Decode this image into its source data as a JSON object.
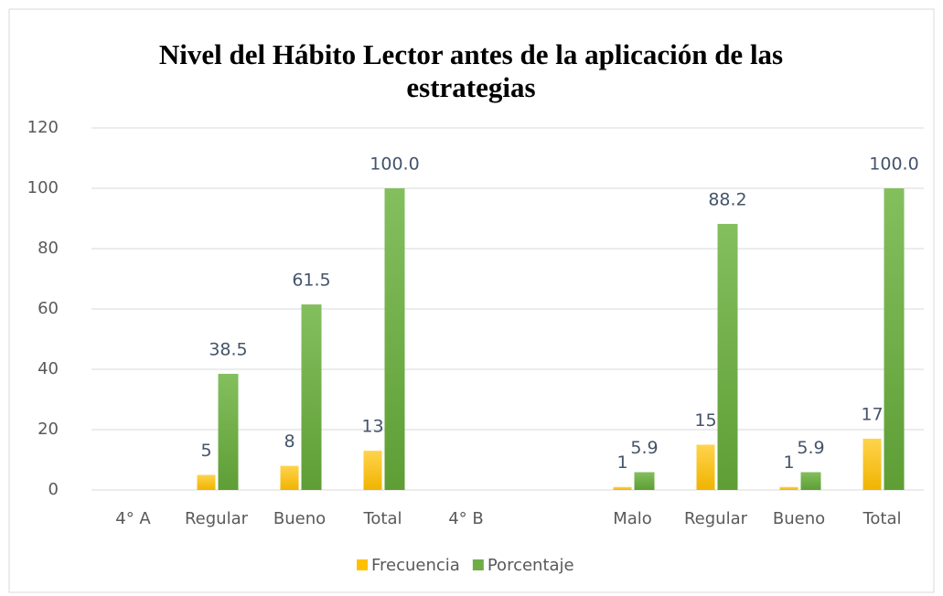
{
  "chart_data": {
    "type": "bar",
    "title": "Nivel del Hábito Lector antes de la aplicación de las estrategias",
    "categories": [
      "4° A",
      "Regular",
      "Bueno",
      "Total",
      "4° B",
      null,
      "Malo",
      "Regular",
      "Bueno",
      "Total"
    ],
    "series": [
      {
        "name": "Frecuencia",
        "color": "#ffc000",
        "values": [
          null,
          5,
          8,
          13,
          null,
          null,
          1,
          15,
          1,
          17
        ]
      },
      {
        "name": "Porcentaje",
        "color": "#70ad47",
        "values": [
          null,
          38.5,
          61.5,
          100.0,
          null,
          null,
          5.9,
          88.2,
          5.9,
          100.0
        ],
        "value_labels": [
          null,
          "38.5",
          "61.5",
          "100.0",
          null,
          null,
          "5.9",
          "88.2",
          "5.9",
          "100.0"
        ]
      }
    ],
    "ylim": [
      0,
      120
    ],
    "yticks": [
      0,
      20,
      40,
      60,
      80,
      100,
      120
    ],
    "grid": true,
    "legend": "bottom"
  }
}
